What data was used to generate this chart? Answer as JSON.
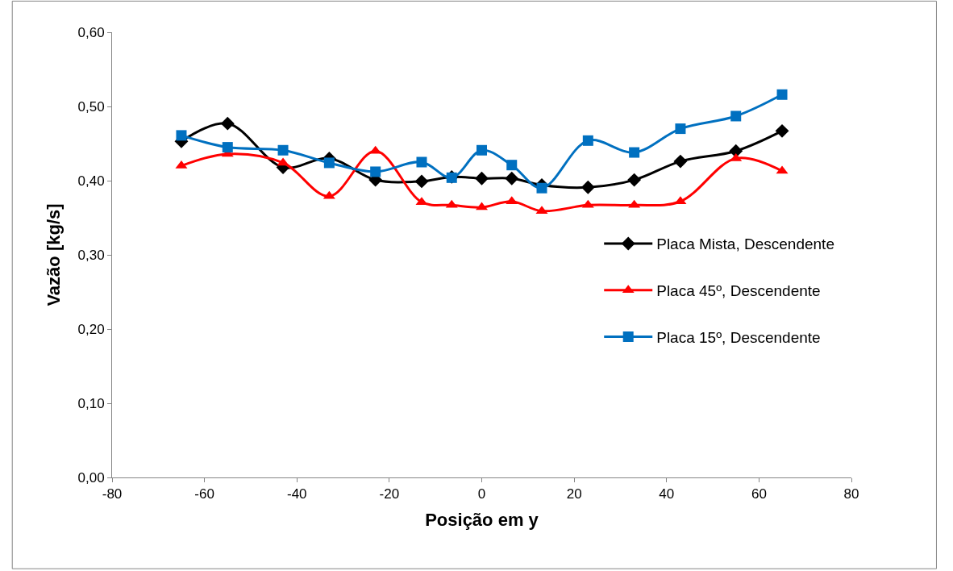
{
  "chart_data": {
    "type": "line",
    "xlabel": "Posição em y",
    "ylabel": "Vazão [kg/s]",
    "x": [
      -65,
      -55,
      -43,
      -33,
      -23,
      -13,
      -6.5,
      0,
      6.5,
      13,
      23,
      33,
      43,
      55,
      65
    ],
    "xlim": [
      -80,
      80
    ],
    "xticks": [
      -80,
      -60,
      -40,
      -20,
      0,
      20,
      40,
      60,
      80
    ],
    "ylim": [
      0,
      0.6
    ],
    "yticks": [
      {
        "value": 0,
        "label": "0,00"
      },
      {
        "value": 0.1,
        "label": "0,10"
      },
      {
        "value": 0.2,
        "label": "0,20"
      },
      {
        "value": 0.3,
        "label": "0,30"
      },
      {
        "value": 0.4,
        "label": "0,40"
      },
      {
        "value": 0.5,
        "label": "0,50"
      },
      {
        "value": 0.6,
        "label": "0,60"
      }
    ],
    "legend": "right",
    "series": [
      {
        "name": "Placa Mista, Descendente",
        "color": "#000000",
        "marker": "diamond",
        "values": [
          0.453,
          0.477,
          0.418,
          0.43,
          0.401,
          0.399,
          0.405,
          0.403,
          0.403,
          0.394,
          0.391,
          0.401,
          0.426,
          0.44,
          0.467
        ]
      },
      {
        "name": "Placa 45º, Descendente",
        "color": "#ff0000",
        "marker": "triangle",
        "values": [
          0.42,
          0.436,
          0.424,
          0.379,
          0.44,
          0.371,
          0.367,
          0.364,
          0.372,
          0.359,
          0.367,
          0.367,
          0.372,
          0.43,
          0.413
        ]
      },
      {
        "name": "Placa 15º, Descendente",
        "color": "#0070c0",
        "marker": "square",
        "values": [
          0.461,
          0.445,
          0.441,
          0.424,
          0.412,
          0.425,
          0.404,
          0.441,
          0.421,
          0.39,
          0.454,
          0.438,
          0.47,
          0.487,
          0.516
        ]
      }
    ]
  }
}
